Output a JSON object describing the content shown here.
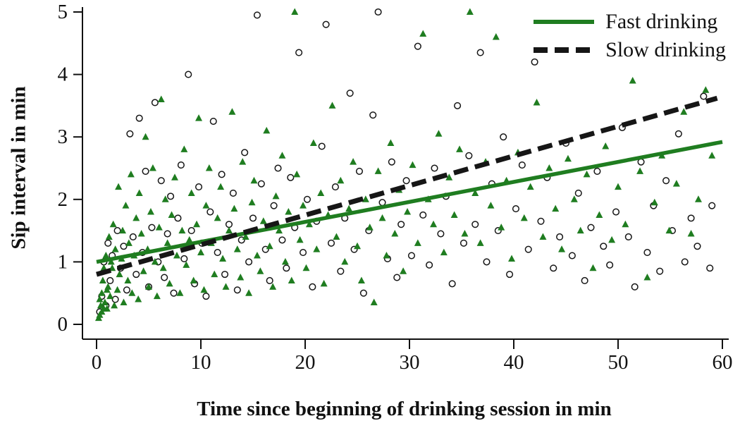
{
  "chart_data": {
    "type": "scatter",
    "title": "",
    "xlabel": "Time since beginning of drinking session in min",
    "ylabel": "Sip interval in min",
    "xlim": [
      0,
      60
    ],
    "ylim": [
      0,
      5
    ],
    "xticks": [
      0,
      10,
      20,
      30,
      40,
      50,
      60
    ],
    "yticks": [
      0,
      1,
      2,
      3,
      4,
      5
    ],
    "grid": false,
    "legend_position": "top-right",
    "axis_color": "#111111",
    "series": [
      {
        "name": "Fast drinking",
        "marker": "filled-triangle",
        "color": "#1f7d20",
        "line_style": "solid",
        "line_width": 5.5,
        "trend_line": {
          "x1": 0,
          "y1": 1.0,
          "x2": 60,
          "y2": 2.92
        },
        "points": [
          [
            0.2,
            0.1
          ],
          [
            0.3,
            0.15
          ],
          [
            0.3,
            0.4
          ],
          [
            0.4,
            0.3
          ],
          [
            0.5,
            0.5
          ],
          [
            0.5,
            0.2
          ],
          [
            0.6,
            0.7
          ],
          [
            0.7,
            0.25
          ],
          [
            0.7,
            0.9
          ],
          [
            0.8,
            0.35
          ],
          [
            0.9,
            1.1
          ],
          [
            1.0,
            0.25
          ],
          [
            1.0,
            0.55
          ],
          [
            1.1,
            0.6
          ],
          [
            1.2,
            1.4
          ],
          [
            1.3,
            0.45
          ],
          [
            1.4,
            1.0
          ],
          [
            1.5,
            0.9
          ],
          [
            1.6,
            1.6
          ],
          [
            1.7,
            0.3
          ],
          [
            1.8,
            1.2
          ],
          [
            2.0,
            0.55
          ],
          [
            2.1,
            2.2
          ],
          [
            2.2,
            0.8
          ],
          [
            2.4,
            1.05
          ],
          [
            2.5,
            1.5
          ],
          [
            2.6,
            0.35
          ],
          [
            2.8,
            1.9
          ],
          [
            3.0,
            0.7
          ],
          [
            3.1,
            1.3
          ],
          [
            3.3,
            2.4
          ],
          [
            3.4,
            0.5
          ],
          [
            3.6,
            1.1
          ],
          [
            3.8,
            1.7
          ],
          [
            4.0,
            0.4
          ],
          [
            4.1,
            2.1
          ],
          [
            4.3,
            1.45
          ],
          [
            4.5,
            0.85
          ],
          [
            4.7,
            3.0
          ],
          [
            4.9,
            1.2
          ],
          [
            5.0,
            0.6
          ],
          [
            5.2,
            1.8
          ],
          [
            5.4,
            2.5
          ],
          [
            5.6,
            1.0
          ],
          [
            5.8,
            0.45
          ],
          [
            6.0,
            1.55
          ],
          [
            6.2,
            3.6
          ],
          [
            6.4,
            0.9
          ],
          [
            6.6,
            2.0
          ],
          [
            6.8,
            1.3
          ],
          [
            7.0,
            0.65
          ],
          [
            7.2,
            1.75
          ],
          [
            7.5,
            2.35
          ],
          [
            7.7,
            1.1
          ],
          [
            8.0,
            0.5
          ],
          [
            8.2,
            1.5
          ],
          [
            8.4,
            2.8
          ],
          [
            8.6,
            0.95
          ],
          [
            8.9,
            1.35
          ],
          [
            9.1,
            2.1
          ],
          [
            9.3,
            0.7
          ],
          [
            9.6,
            1.6
          ],
          [
            9.8,
            3.3
          ],
          [
            10.0,
            1.15
          ],
          [
            10.3,
            0.55
          ],
          [
            10.5,
            1.9
          ],
          [
            10.8,
            2.5
          ],
          [
            11.0,
            1.3
          ],
          [
            11.3,
            0.8
          ],
          [
            11.6,
            1.7
          ],
          [
            11.9,
            2.2
          ],
          [
            12.1,
            1.05
          ],
          [
            12.4,
            0.6
          ],
          [
            12.7,
            1.5
          ],
          [
            13.0,
            3.4
          ],
          [
            13.2,
            1.85
          ],
          [
            13.5,
            1.2
          ],
          [
            13.8,
            0.75
          ],
          [
            14.0,
            2.6
          ],
          [
            14.3,
            1.4
          ],
          [
            14.6,
            0.5
          ],
          [
            14.9,
            1.95
          ],
          [
            15.1,
            2.3
          ],
          [
            15.4,
            1.1
          ],
          [
            15.7,
            0.85
          ],
          [
            16.0,
            1.65
          ],
          [
            16.3,
            3.1
          ],
          [
            16.6,
            1.25
          ],
          [
            16.9,
            0.6
          ],
          [
            17.2,
            2.05
          ],
          [
            17.5,
            1.5
          ],
          [
            17.8,
            2.7
          ],
          [
            18.1,
            1.0
          ],
          [
            18.4,
            1.8
          ],
          [
            18.7,
            0.7
          ],
          [
            19.0,
            5.0
          ],
          [
            19.2,
            2.4
          ],
          [
            19.5,
            1.35
          ],
          [
            19.8,
            1.9
          ],
          [
            20.1,
            0.9
          ],
          [
            20.4,
            1.6
          ],
          [
            20.8,
            2.9
          ],
          [
            21.1,
            1.2
          ],
          [
            21.5,
            2.1
          ],
          [
            21.8,
            0.65
          ],
          [
            22.2,
            1.75
          ],
          [
            22.6,
            3.5
          ],
          [
            23.0,
            1.4
          ],
          [
            23.4,
            2.3
          ],
          [
            23.8,
            1.0
          ],
          [
            24.2,
            1.85
          ],
          [
            24.6,
            2.6
          ],
          [
            25.0,
            1.25
          ],
          [
            25.4,
            0.7
          ],
          [
            25.8,
            2.0
          ],
          [
            26.2,
            1.55
          ],
          [
            26.6,
            0.35
          ],
          [
            27.0,
            2.45
          ],
          [
            27.4,
            1.7
          ],
          [
            27.8,
            1.1
          ],
          [
            28.2,
            2.9
          ],
          [
            28.6,
            1.45
          ],
          [
            29.0,
            2.15
          ],
          [
            29.4,
            0.85
          ],
          [
            29.8,
            1.8
          ],
          [
            30.3,
            2.55
          ],
          [
            30.8,
            1.3
          ],
          [
            31.3,
            4.65
          ],
          [
            31.8,
            2.0
          ],
          [
            32.3,
            1.6
          ],
          [
            32.8,
            3.05
          ],
          [
            33.3,
            1.15
          ],
          [
            33.8,
            2.35
          ],
          [
            34.3,
            1.75
          ],
          [
            34.8,
            2.8
          ],
          [
            35.3,
            1.45
          ],
          [
            35.8,
            5.0
          ],
          [
            36.3,
            2.1
          ],
          [
            36.8,
            1.3
          ],
          [
            37.3,
            2.6
          ],
          [
            37.8,
            1.9
          ],
          [
            38.3,
            4.6
          ],
          [
            38.8,
            1.55
          ],
          [
            39.3,
            2.3
          ],
          [
            39.8,
            1.05
          ],
          [
            40.4,
            2.75
          ],
          [
            41.0,
            1.7
          ],
          [
            41.6,
            2.2
          ],
          [
            42.2,
            3.55
          ],
          [
            42.8,
            1.4
          ],
          [
            43.4,
            2.5
          ],
          [
            44.0,
            1.85
          ],
          [
            44.6,
            1.2
          ],
          [
            45.2,
            2.65
          ],
          [
            45.8,
            2.0
          ],
          [
            46.4,
            1.5
          ],
          [
            47.0,
            2.4
          ],
          [
            47.6,
            0.9
          ],
          [
            48.2,
            1.75
          ],
          [
            48.8,
            2.85
          ],
          [
            49.4,
            1.35
          ],
          [
            50.0,
            2.2
          ],
          [
            50.7,
            1.6
          ],
          [
            51.4,
            3.9
          ],
          [
            52.1,
            2.45
          ],
          [
            52.8,
            0.75
          ],
          [
            53.5,
            1.95
          ],
          [
            54.2,
            2.7
          ],
          [
            54.9,
            1.5
          ],
          [
            55.6,
            2.25
          ],
          [
            56.3,
            3.4
          ],
          [
            57.0,
            1.45
          ],
          [
            57.7,
            2.0
          ],
          [
            58.4,
            3.75
          ],
          [
            59.0,
            2.7
          ]
        ]
      },
      {
        "name": "Slow drinking",
        "marker": "open-circle",
        "color": "#161616",
        "line_style": "dashed",
        "line_width": 7,
        "trend_line": {
          "x1": 0,
          "y1": 0.8,
          "x2": 59.5,
          "y2": 3.62
        },
        "points": [
          [
            0.3,
            0.2
          ],
          [
            0.5,
            0.45
          ],
          [
            0.7,
            1.0
          ],
          [
            0.9,
            0.3
          ],
          [
            1.1,
            1.3
          ],
          [
            1.3,
            0.7
          ],
          [
            1.5,
            1.1
          ],
          [
            1.8,
            0.4
          ],
          [
            2.0,
            1.5
          ],
          [
            2.3,
            0.9
          ],
          [
            2.6,
            1.25
          ],
          [
            2.9,
            0.55
          ],
          [
            3.2,
            3.05
          ],
          [
            3.5,
            1.4
          ],
          [
            3.8,
            0.8
          ],
          [
            4.1,
            3.3
          ],
          [
            4.4,
            1.15
          ],
          [
            4.7,
            2.45
          ],
          [
            5.0,
            0.6
          ],
          [
            5.3,
            1.55
          ],
          [
            5.6,
            3.55
          ],
          [
            5.9,
            1.0
          ],
          [
            6.2,
            2.3
          ],
          [
            6.5,
            0.75
          ],
          [
            6.8,
            1.45
          ],
          [
            7.1,
            2.05
          ],
          [
            7.4,
            0.5
          ],
          [
            7.8,
            1.7
          ],
          [
            8.1,
            2.55
          ],
          [
            8.4,
            1.05
          ],
          [
            8.8,
            4.0
          ],
          [
            9.1,
            1.5
          ],
          [
            9.4,
            0.65
          ],
          [
            9.8,
            2.2
          ],
          [
            10.1,
            1.3
          ],
          [
            10.5,
            0.45
          ],
          [
            10.9,
            1.8
          ],
          [
            11.2,
            3.25
          ],
          [
            11.6,
            1.15
          ],
          [
            12.0,
            2.4
          ],
          [
            12.3,
            0.8
          ],
          [
            12.7,
            1.6
          ],
          [
            13.1,
            2.1
          ],
          [
            13.5,
            0.55
          ],
          [
            13.9,
            1.35
          ],
          [
            14.2,
            2.75
          ],
          [
            14.6,
            1.0
          ],
          [
            15.0,
            1.7
          ],
          [
            15.4,
            4.95
          ],
          [
            15.8,
            2.25
          ],
          [
            16.2,
            1.2
          ],
          [
            16.6,
            0.7
          ],
          [
            17.0,
            1.9
          ],
          [
            17.4,
            2.5
          ],
          [
            17.8,
            1.35
          ],
          [
            18.2,
            0.9
          ],
          [
            18.6,
            2.35
          ],
          [
            19.0,
            1.55
          ],
          [
            19.4,
            4.35
          ],
          [
            19.8,
            1.15
          ],
          [
            20.2,
            2.0
          ],
          [
            20.7,
            0.6
          ],
          [
            21.1,
            1.65
          ],
          [
            21.6,
            2.85
          ],
          [
            22.0,
            4.8
          ],
          [
            22.5,
            1.3
          ],
          [
            22.9,
            2.2
          ],
          [
            23.4,
            0.85
          ],
          [
            23.8,
            1.7
          ],
          [
            24.3,
            3.7
          ],
          [
            24.7,
            1.2
          ],
          [
            25.2,
            2.45
          ],
          [
            25.6,
            0.5
          ],
          [
            26.1,
            1.5
          ],
          [
            26.5,
            3.35
          ],
          [
            27.0,
            5.0
          ],
          [
            27.4,
            1.95
          ],
          [
            27.9,
            1.05
          ],
          [
            28.3,
            2.6
          ],
          [
            28.8,
            0.75
          ],
          [
            29.2,
            1.6
          ],
          [
            29.7,
            2.3
          ],
          [
            30.2,
            1.1
          ],
          [
            30.8,
            4.45
          ],
          [
            31.3,
            1.75
          ],
          [
            31.9,
            0.95
          ],
          [
            32.4,
            2.5
          ],
          [
            33.0,
            1.45
          ],
          [
            33.5,
            2.05
          ],
          [
            34.1,
            0.65
          ],
          [
            34.6,
            3.5
          ],
          [
            35.2,
            1.3
          ],
          [
            35.7,
            2.7
          ],
          [
            36.3,
            1.6
          ],
          [
            36.8,
            4.35
          ],
          [
            37.4,
            1.0
          ],
          [
            37.9,
            2.25
          ],
          [
            38.5,
            1.5
          ],
          [
            39.0,
            3.0
          ],
          [
            39.6,
            0.8
          ],
          [
            40.2,
            1.85
          ],
          [
            40.8,
            2.55
          ],
          [
            41.4,
            1.2
          ],
          [
            42.0,
            4.2
          ],
          [
            42.6,
            1.65
          ],
          [
            43.2,
            2.35
          ],
          [
            43.8,
            0.9
          ],
          [
            44.4,
            1.4
          ],
          [
            45.0,
            2.9
          ],
          [
            45.6,
            1.1
          ],
          [
            46.2,
            2.1
          ],
          [
            46.8,
            0.7
          ],
          [
            47.4,
            1.55
          ],
          [
            48.0,
            2.45
          ],
          [
            48.6,
            1.25
          ],
          [
            49.2,
            0.95
          ],
          [
            49.8,
            1.8
          ],
          [
            50.4,
            3.15
          ],
          [
            51.0,
            1.4
          ],
          [
            51.6,
            0.6
          ],
          [
            52.2,
            2.6
          ],
          [
            52.8,
            1.15
          ],
          [
            53.4,
            1.9
          ],
          [
            54.0,
            0.85
          ],
          [
            54.6,
            2.3
          ],
          [
            55.2,
            1.5
          ],
          [
            55.8,
            3.05
          ],
          [
            56.4,
            1.0
          ],
          [
            57.0,
            1.7
          ],
          [
            57.6,
            1.25
          ],
          [
            58.2,
            3.65
          ],
          [
            58.8,
            0.9
          ],
          [
            59.0,
            1.9
          ]
        ]
      }
    ]
  }
}
